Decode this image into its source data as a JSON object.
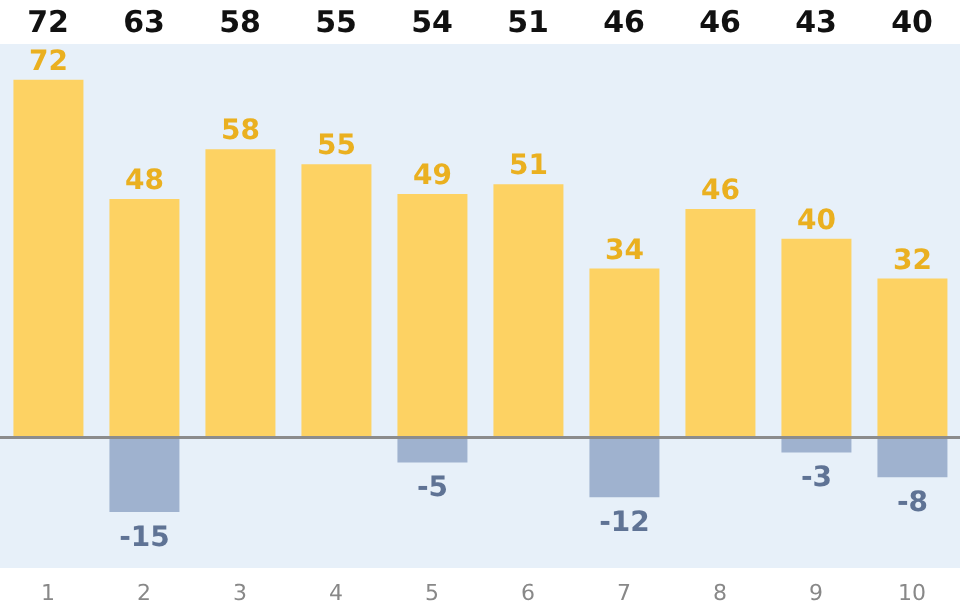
{
  "chart_data": {
    "type": "bar",
    "stacked": true,
    "data_labels": true,
    "grid": false,
    "legend": false,
    "categories": [
      "1",
      "2",
      "3",
      "4",
      "5",
      "6",
      "7",
      "8",
      "9",
      "10"
    ],
    "series": [
      {
        "color": "#fdd263",
        "values": [
          72,
          48,
          58,
          55,
          49,
          51,
          34,
          46,
          40,
          32
        ]
      },
      {
        "color": "#9fb2cf",
        "values": [
          null,
          -15,
          null,
          null,
          -5,
          null,
          -12,
          null,
          -3,
          -8
        ]
      }
    ],
    "annotations": [
      "72",
      "63",
      "58",
      "55",
      "54",
      "51",
      "46",
      "46",
      "43",
      "40"
    ],
    "ref_lines": [
      {
        "axis": "y",
        "value": 0,
        "color": "#8c8c8c"
      }
    ]
  }
}
